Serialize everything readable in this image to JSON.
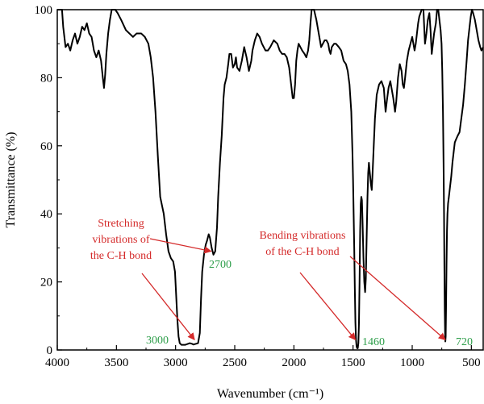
{
  "chart_data": {
    "type": "line",
    "title": "",
    "xlabel": "Wavenumber (cm⁻¹)",
    "ylabel": "Transmittance (%)",
    "xlim": [
      4000,
      400
    ],
    "ylim": [
      0,
      100
    ],
    "x_reversed": true,
    "grid": false,
    "x_ticks": [
      4000,
      3500,
      3000,
      2500,
      2000,
      1500,
      1000,
      500
    ],
    "y_ticks": [
      0,
      20,
      40,
      60,
      80,
      100
    ],
    "series": [
      {
        "color": "#000000",
        "points": [
          [
            4000,
            100
          ],
          [
            3960,
            100
          ],
          [
            3950,
            95
          ],
          [
            3930,
            89
          ],
          [
            3910,
            90
          ],
          [
            3890,
            88
          ],
          [
            3870,
            91
          ],
          [
            3850,
            93
          ],
          [
            3830,
            90
          ],
          [
            3810,
            92
          ],
          [
            3790,
            95
          ],
          [
            3770,
            94
          ],
          [
            3750,
            96
          ],
          [
            3730,
            93
          ],
          [
            3710,
            92
          ],
          [
            3690,
            88
          ],
          [
            3670,
            86
          ],
          [
            3650,
            88
          ],
          [
            3630,
            85
          ],
          [
            3615,
            80
          ],
          [
            3605,
            77
          ],
          [
            3595,
            81
          ],
          [
            3585,
            87
          ],
          [
            3570,
            93
          ],
          [
            3555,
            97
          ],
          [
            3540,
            100
          ],
          [
            3510,
            100
          ],
          [
            3490,
            99
          ],
          [
            3460,
            97
          ],
          [
            3420,
            94
          ],
          [
            3390,
            93
          ],
          [
            3360,
            92
          ],
          [
            3330,
            93
          ],
          [
            3290,
            93
          ],
          [
            3260,
            92
          ],
          [
            3230,
            90
          ],
          [
            3210,
            86
          ],
          [
            3190,
            80
          ],
          [
            3170,
            70
          ],
          [
            3150,
            57
          ],
          [
            3130,
            45
          ],
          [
            3100,
            40
          ],
          [
            3080,
            34
          ],
          [
            3060,
            29
          ],
          [
            3040,
            27
          ],
          [
            3020,
            26
          ],
          [
            3005,
            23
          ],
          [
            2995,
            16
          ],
          [
            2985,
            9
          ],
          [
            2975,
            4
          ],
          [
            2965,
            2
          ],
          [
            2950,
            1.5
          ],
          [
            2920,
            1.5
          ],
          [
            2880,
            2
          ],
          [
            2860,
            1.8
          ],
          [
            2850,
            1.6
          ],
          [
            2830,
            1.8
          ],
          [
            2810,
            2
          ],
          [
            2795,
            5
          ],
          [
            2785,
            15
          ],
          [
            2775,
            23
          ],
          [
            2760,
            28
          ],
          [
            2745,
            31
          ],
          [
            2735,
            32
          ],
          [
            2720,
            34
          ],
          [
            2710,
            33
          ],
          [
            2695,
            30
          ],
          [
            2680,
            28
          ],
          [
            2665,
            29
          ],
          [
            2650,
            36
          ],
          [
            2640,
            45
          ],
          [
            2625,
            55
          ],
          [
            2610,
            63
          ],
          [
            2595,
            74
          ],
          [
            2585,
            78
          ],
          [
            2570,
            80
          ],
          [
            2555,
            84
          ],
          [
            2545,
            87
          ],
          [
            2530,
            87
          ],
          [
            2515,
            83
          ],
          [
            2500,
            84
          ],
          [
            2490,
            86
          ],
          [
            2480,
            83
          ],
          [
            2460,
            82
          ],
          [
            2440,
            85
          ],
          [
            2420,
            89
          ],
          [
            2400,
            86
          ],
          [
            2390,
            84
          ],
          [
            2380,
            82
          ],
          [
            2360,
            85
          ],
          [
            2350,
            88
          ],
          [
            2330,
            91
          ],
          [
            2310,
            93
          ],
          [
            2290,
            92
          ],
          [
            2270,
            90
          ],
          [
            2240,
            88
          ],
          [
            2220,
            88
          ],
          [
            2200,
            89
          ],
          [
            2185,
            90
          ],
          [
            2170,
            91
          ],
          [
            2140,
            90
          ],
          [
            2120,
            88
          ],
          [
            2100,
            87
          ],
          [
            2080,
            87
          ],
          [
            2060,
            86
          ],
          [
            2040,
            83
          ],
          [
            2030,
            80
          ],
          [
            2020,
            77
          ],
          [
            2010,
            74
          ],
          [
            2000,
            74
          ],
          [
            1990,
            78
          ],
          [
            1980,
            85
          ],
          [
            1970,
            88
          ],
          [
            1960,
            90
          ],
          [
            1945,
            89
          ],
          [
            1930,
            88
          ],
          [
            1910,
            87
          ],
          [
            1895,
            86
          ],
          [
            1880,
            88
          ],
          [
            1870,
            91
          ],
          [
            1860,
            96
          ],
          [
            1850,
            100
          ],
          [
            1830,
            100
          ],
          [
            1810,
            97
          ],
          [
            1795,
            94
          ],
          [
            1780,
            91
          ],
          [
            1770,
            89
          ],
          [
            1755,
            90
          ],
          [
            1740,
            91
          ],
          [
            1725,
            91
          ],
          [
            1710,
            90
          ],
          [
            1700,
            88
          ],
          [
            1690,
            87
          ],
          [
            1680,
            89
          ],
          [
            1660,
            90
          ],
          [
            1645,
            90
          ],
          [
            1620,
            89
          ],
          [
            1600,
            88
          ],
          [
            1580,
            85
          ],
          [
            1560,
            84
          ],
          [
            1545,
            82
          ],
          [
            1530,
            78
          ],
          [
            1515,
            70
          ],
          [
            1505,
            58
          ],
          [
            1500,
            50
          ],
          [
            1495,
            40
          ],
          [
            1490,
            30
          ],
          [
            1485,
            18
          ],
          [
            1480,
            8
          ],
          [
            1475,
            3
          ],
          [
            1470,
            1
          ],
          [
            1465,
            0.5
          ],
          [
            1460,
            0.5
          ],
          [
            1455,
            2
          ],
          [
            1450,
            8
          ],
          [
            1445,
            20
          ],
          [
            1440,
            35
          ],
          [
            1435,
            43
          ],
          [
            1430,
            45
          ],
          [
            1425,
            44
          ],
          [
            1420,
            38
          ],
          [
            1412,
            27
          ],
          [
            1405,
            20
          ],
          [
            1398,
            17
          ],
          [
            1392,
            21
          ],
          [
            1385,
            33
          ],
          [
            1378,
            45
          ],
          [
            1372,
            52
          ],
          [
            1366,
            55
          ],
          [
            1358,
            52
          ],
          [
            1350,
            49
          ],
          [
            1342,
            47
          ],
          [
            1335,
            52
          ],
          [
            1325,
            60
          ],
          [
            1315,
            68
          ],
          [
            1300,
            75
          ],
          [
            1280,
            78
          ],
          [
            1260,
            79
          ],
          [
            1240,
            77
          ],
          [
            1225,
            70
          ],
          [
            1215,
            73
          ],
          [
            1200,
            77
          ],
          [
            1185,
            79
          ],
          [
            1170,
            76
          ],
          [
            1160,
            74
          ],
          [
            1145,
            70
          ],
          [
            1135,
            73
          ],
          [
            1120,
            80
          ],
          [
            1105,
            84
          ],
          [
            1090,
            82
          ],
          [
            1080,
            78
          ],
          [
            1070,
            77
          ],
          [
            1060,
            80
          ],
          [
            1045,
            85
          ],
          [
            1030,
            88
          ],
          [
            1015,
            90
          ],
          [
            1000,
            92
          ],
          [
            990,
            90
          ],
          [
            980,
            88
          ],
          [
            970,
            90
          ],
          [
            960,
            93
          ],
          [
            950,
            96
          ],
          [
            940,
            98
          ],
          [
            930,
            99
          ],
          [
            920,
            100
          ],
          [
            905,
            100
          ],
          [
            900,
            96
          ],
          [
            892,
            90
          ],
          [
            880,
            93
          ],
          [
            868,
            97
          ],
          [
            855,
            99
          ],
          [
            845,
            94
          ],
          [
            835,
            87
          ],
          [
            825,
            90
          ],
          [
            815,
            93
          ],
          [
            800,
            96
          ],
          [
            790,
            100
          ],
          [
            780,
            100
          ],
          [
            770,
            97
          ],
          [
            760,
            94
          ],
          [
            752,
            90
          ],
          [
            746,
            82
          ],
          [
            740,
            70
          ],
          [
            735,
            55
          ],
          [
            731,
            40
          ],
          [
            728,
            25
          ],
          [
            725,
            12
          ],
          [
            722,
            5
          ],
          [
            720,
            2.5
          ],
          [
            717,
            4
          ],
          [
            714,
            12
          ],
          [
            710,
            25
          ],
          [
            706,
            35
          ],
          [
            702,
            40
          ],
          [
            697,
            43
          ],
          [
            690,
            45
          ],
          [
            680,
            48
          ],
          [
            670,
            51
          ],
          [
            660,
            55
          ],
          [
            650,
            58
          ],
          [
            640,
            61
          ],
          [
            628,
            62
          ],
          [
            615,
            63
          ],
          [
            600,
            64
          ],
          [
            585,
            68
          ],
          [
            570,
            72
          ],
          [
            555,
            78
          ],
          [
            540,
            85
          ],
          [
            528,
            91
          ],
          [
            515,
            95
          ],
          [
            505,
            98
          ],
          [
            495,
            100
          ],
          [
            485,
            99
          ],
          [
            470,
            97
          ],
          [
            455,
            94
          ],
          [
            440,
            91
          ],
          [
            425,
            89
          ],
          [
            415,
            88
          ],
          [
            400,
            89
          ]
        ]
      }
    ],
    "peak_labels": [
      {
        "x": 3000,
        "y": 0,
        "text": "3000",
        "color": "#2e9e4a"
      },
      {
        "x": 2700,
        "y": 28,
        "text": "2700",
        "color": "#2e9e4a"
      },
      {
        "x": 1460,
        "y": 0,
        "text": "1460",
        "color": "#2e9e4a"
      },
      {
        "x": 720,
        "y": 0,
        "text": "720",
        "color": "#2e9e4a"
      }
    ],
    "annotations": [
      {
        "lines": [
          "Stretching",
          "vibrations of",
          "the C-H bond"
        ],
        "color": "#d42a2a",
        "arrow_targets": [
          [
            2700,
            29
          ],
          [
            2840,
            3
          ]
        ]
      },
      {
        "lines": [
          "Bending vibrations",
          "of the C-H bond"
        ],
        "color": "#d42a2a",
        "arrow_targets": [
          [
            1480,
            3
          ],
          [
            720,
            3
          ]
        ]
      }
    ]
  }
}
